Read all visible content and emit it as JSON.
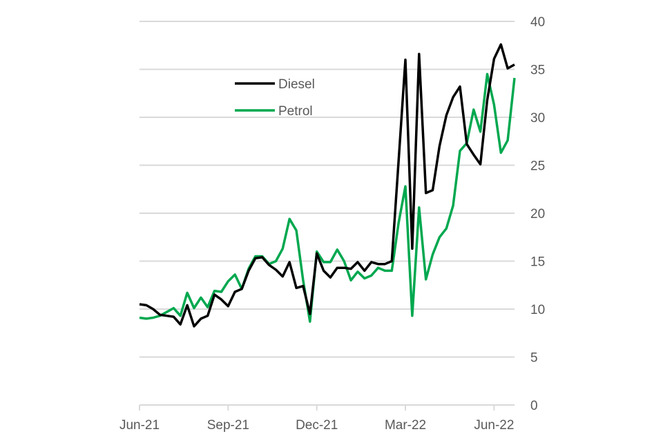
{
  "chart_data": {
    "type": "line",
    "title": "",
    "xlabel": "",
    "ylabel": "",
    "ylim": [
      0,
      40
    ],
    "yticks": [
      0,
      5,
      10,
      15,
      20,
      25,
      30,
      35,
      40
    ],
    "xtick_labels": [
      {
        "label": "Jun-21",
        "index": 0
      },
      {
        "label": "Sep-21",
        "index": 13
      },
      {
        "label": "Dec-21",
        "index": 26
      },
      {
        "label": "Mar-22",
        "index": 39
      },
      {
        "label": "Jun-22",
        "index": 52
      }
    ],
    "grid": true,
    "legend_position": "upper-left-center",
    "series": [
      {
        "name": "Diesel",
        "color": "#000000",
        "values": [
          10.5,
          10.4,
          10.0,
          9.4,
          9.3,
          9.2,
          8.4,
          10.4,
          8.2,
          9.0,
          9.3,
          11.5,
          11.0,
          10.3,
          11.8,
          12.1,
          14.0,
          15.3,
          15.4,
          14.6,
          14.1,
          13.4,
          14.9,
          12.2,
          12.4,
          9.5,
          15.8,
          14.0,
          13.3,
          14.3,
          14.3,
          14.2,
          14.9,
          14.0,
          14.9,
          14.7,
          14.7,
          15.0,
          25.5,
          36.0,
          16.3,
          36.6,
          22.1,
          22.4,
          27.0,
          30.2,
          32.1,
          33.2,
          27.2,
          26.1,
          25.1,
          31.8,
          36.1,
          37.6,
          35.1,
          35.5
        ]
      },
      {
        "name": "Petrol",
        "color": "#00a84f",
        "values": [
          9.1,
          9.0,
          9.1,
          9.3,
          9.7,
          10.1,
          9.3,
          11.7,
          10.1,
          11.2,
          10.2,
          11.9,
          11.8,
          12.9,
          13.6,
          12.1,
          14.2,
          15.5,
          15.5,
          14.7,
          15.0,
          16.3,
          19.4,
          18.2,
          13.0,
          8.7,
          16.0,
          14.9,
          14.9,
          16.2,
          15.0,
          13.0,
          13.9,
          13.2,
          13.5,
          14.3,
          14.0,
          14.0,
          19.0,
          22.8,
          9.3,
          20.6,
          13.1,
          15.7,
          17.5,
          18.4,
          20.8,
          26.5,
          27.3,
          30.8,
          28.5,
          34.5,
          31.3,
          26.3,
          27.6,
          34.1
        ]
      }
    ]
  }
}
